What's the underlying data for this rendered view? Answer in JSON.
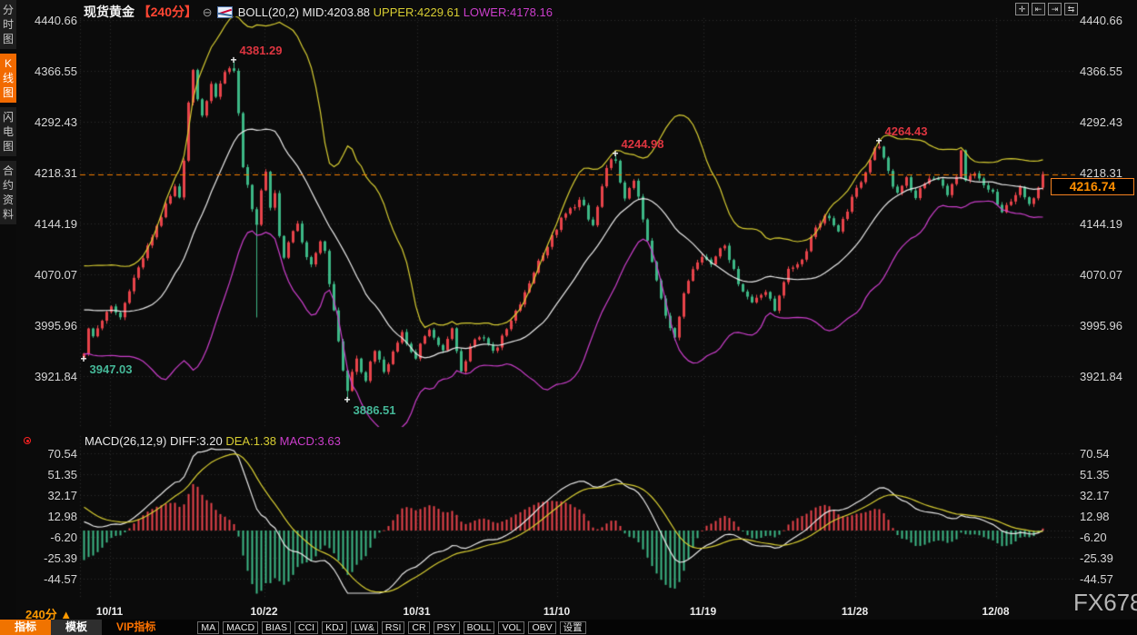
{
  "colors": {
    "up": "#e8434a",
    "down": "#3db886",
    "boll_upper": "#d7cd32",
    "boll_mid": "#eaeaea",
    "boll_lower": "#cb3ecb",
    "last_line": "#f57d00",
    "grid": "#2c2c2c",
    "annotation_high": "#dd3540",
    "annotation_low": "#45b898",
    "accent_orange": "#f07300"
  },
  "sidebar": {
    "items": [
      {
        "label": "分时图",
        "active": false
      },
      {
        "label": "K线图",
        "active": true
      },
      {
        "label": "闪电图",
        "active": false
      },
      {
        "label": "合约资料",
        "active": false
      }
    ]
  },
  "topbar": {
    "symbol": "现货黄金",
    "period": "【240分】",
    "collapse": "⊖",
    "boll_label": "BOLL(20,2)",
    "mid": "MID:4203.88",
    "upper": "UPPER:4229.61",
    "lower": "LOWER:4178.16"
  },
  "window_tools": [
    "✛",
    "⇤",
    "⇥",
    "⇆"
  ],
  "chart_data": {
    "type": "candlestick",
    "title": "现货黄金 240分 K线图 BOLL+MACD",
    "main": {
      "y_ticks": [
        "4440.66",
        "4366.55",
        "4292.43",
        "4218.31",
        "4144.19",
        "4070.07",
        "3995.96",
        "3921.84"
      ],
      "last_close": 4216.74,
      "last_price_label": "4216.74",
      "boll": {
        "period": 20,
        "mult": 2
      },
      "annotations": [
        {
          "text": "4381.29",
          "i": 33,
          "price": 4381.29,
          "kind": "high"
        },
        {
          "text": "3947.03",
          "i": 0,
          "price": 3947.03,
          "kind": "low"
        },
        {
          "text": "3886.51",
          "i": 58,
          "price": 3886.51,
          "kind": "low"
        },
        {
          "text": "4244.98",
          "i": 117,
          "price": 4244.98,
          "kind": "high"
        },
        {
          "text": "4264.43",
          "i": 175,
          "price": 4264.43,
          "kind": "high"
        }
      ],
      "forced_wicks": [
        {
          "i": 38,
          "low": 4008
        },
        {
          "i": 193,
          "high": 4252
        }
      ],
      "key_points": [
        [
          -50,
          3850
        ],
        [
          -30,
          3930
        ],
        [
          -15,
          4010
        ],
        [
          -8,
          4055
        ],
        [
          -5,
          4060
        ],
        [
          -3,
          4020
        ],
        [
          -1,
          3950
        ],
        [
          0,
          3958
        ],
        [
          1,
          3990
        ],
        [
          2,
          3980
        ],
        [
          4,
          4005
        ],
        [
          6,
          4022
        ],
        [
          8,
          4008
        ],
        [
          10,
          4050
        ],
        [
          12,
          4080
        ],
        [
          14,
          4110
        ],
        [
          16,
          4142
        ],
        [
          18,
          4170
        ],
        [
          20,
          4196
        ],
        [
          21,
          4180
        ],
        [
          22,
          4240
        ],
        [
          23,
          4320
        ],
        [
          24,
          4365
        ],
        [
          25,
          4328
        ],
        [
          26,
          4300
        ],
        [
          27,
          4326
        ],
        [
          28,
          4345
        ],
        [
          29,
          4332
        ],
        [
          30,
          4350
        ],
        [
          31,
          4365
        ],
        [
          32,
          4372
        ],
        [
          33,
          4368
        ],
        [
          34,
          4305
        ],
        [
          35,
          4230
        ],
        [
          36,
          4200
        ],
        [
          37,
          4162
        ],
        [
          38,
          4145
        ],
        [
          39,
          4195
        ],
        [
          40,
          4218
        ],
        [
          41,
          4165
        ],
        [
          42,
          4188
        ],
        [
          43,
          4130
        ],
        [
          44,
          4095
        ],
        [
          45,
          4115
        ],
        [
          46,
          4132
        ],
        [
          47,
          4148
        ],
        [
          48,
          4118
        ],
        [
          49,
          4092
        ],
        [
          50,
          4082
        ],
        [
          51,
          4102
        ],
        [
          52,
          4120
        ],
        [
          53,
          4105
        ],
        [
          54,
          4060
        ],
        [
          55,
          4015
        ],
        [
          56,
          3975
        ],
        [
          57,
          3932
        ],
        [
          58,
          3900
        ],
        [
          59,
          3928
        ],
        [
          60,
          3948
        ],
        [
          61,
          3930
        ],
        [
          62,
          3912
        ],
        [
          63,
          3940
        ],
        [
          64,
          3962
        ],
        [
          65,
          3945
        ],
        [
          66,
          3932
        ],
        [
          67,
          3936
        ],
        [
          68,
          3958
        ],
        [
          69,
          3972
        ],
        [
          70,
          3986
        ],
        [
          71,
          3970
        ],
        [
          72,
          3958
        ],
        [
          73,
          3952
        ],
        [
          74,
          3968
        ],
        [
          75,
          3982
        ],
        [
          76,
          3992
        ],
        [
          77,
          3976
        ],
        [
          78,
          3964
        ],
        [
          79,
          3962
        ],
        [
          80,
          3980
        ],
        [
          81,
          3992
        ],
        [
          82,
          3960
        ],
        [
          83,
          3928
        ],
        [
          84,
          3942
        ],
        [
          85,
          3965
        ],
        [
          86,
          3975
        ],
        [
          87,
          3982
        ],
        [
          88,
          3978
        ],
        [
          89,
          3968
        ],
        [
          90,
          3962
        ],
        [
          91,
          3966
        ],
        [
          92,
          3978
        ],
        [
          93,
          3990
        ],
        [
          94,
          4002
        ],
        [
          95,
          4015
        ],
        [
          96,
          4028
        ],
        [
          97,
          4042
        ],
        [
          98,
          4058
        ],
        [
          99,
          4075
        ],
        [
          100,
          4090
        ],
        [
          101,
          4102
        ],
        [
          102,
          4112
        ],
        [
          103,
          4125
        ],
        [
          104,
          4138
        ],
        [
          105,
          4150
        ],
        [
          106,
          4158
        ],
        [
          107,
          4165
        ],
        [
          108,
          4172
        ],
        [
          109,
          4178
        ],
        [
          110,
          4168
        ],
        [
          111,
          4150
        ],
        [
          112,
          4142
        ],
        [
          113,
          4168
        ],
        [
          114,
          4198
        ],
        [
          115,
          4222
        ],
        [
          116,
          4235
        ],
        [
          117,
          4240
        ],
        [
          118,
          4202
        ],
        [
          119,
          4178
        ],
        [
          120,
          4198
        ],
        [
          121,
          4210
        ],
        [
          122,
          4180
        ],
        [
          123,
          4150
        ],
        [
          124,
          4118
        ],
        [
          125,
          4088
        ],
        [
          126,
          4060
        ],
        [
          127,
          4035
        ],
        [
          128,
          4012
        ],
        [
          129,
          3995
        ],
        [
          130,
          3982
        ],
        [
          131,
          4010
        ],
        [
          132,
          4040
        ],
        [
          133,
          4062
        ],
        [
          134,
          4080
        ],
        [
          135,
          4092
        ],
        [
          136,
          4100
        ],
        [
          137,
          4092
        ],
        [
          138,
          4085
        ],
        [
          139,
          4098
        ],
        [
          140,
          4110
        ],
        [
          141,
          4116
        ],
        [
          142,
          4095
        ],
        [
          143,
          4075
        ],
        [
          144,
          4060
        ],
        [
          145,
          4048
        ],
        [
          146,
          4038
        ],
        [
          147,
          4030
        ],
        [
          148,
          4038
        ],
        [
          149,
          4044
        ],
        [
          150,
          4046
        ],
        [
          151,
          4032
        ],
        [
          152,
          4018
        ],
        [
          153,
          4042
        ],
        [
          154,
          4062
        ],
        [
          155,
          4075
        ],
        [
          156,
          4082
        ],
        [
          157,
          4088
        ],
        [
          158,
          4092
        ],
        [
          159,
          4108
        ],
        [
          160,
          4125
        ],
        [
          161,
          4140
        ],
        [
          162,
          4148
        ],
        [
          163,
          4154
        ],
        [
          164,
          4155
        ],
        [
          165,
          4142
        ],
        [
          166,
          4130
        ],
        [
          167,
          4148
        ],
        [
          168,
          4165
        ],
        [
          169,
          4180
        ],
        [
          170,
          4195
        ],
        [
          171,
          4208
        ],
        [
          172,
          4222
        ],
        [
          173,
          4238
        ],
        [
          174,
          4252
        ],
        [
          175,
          4260
        ],
        [
          176,
          4238
        ],
        [
          177,
          4218
        ],
        [
          178,
          4200
        ],
        [
          179,
          4190
        ],
        [
          180,
          4202
        ],
        [
          181,
          4214
        ],
        [
          182,
          4195
        ],
        [
          183,
          4180
        ],
        [
          184,
          4195
        ],
        [
          185,
          4205
        ],
        [
          186,
          4208
        ],
        [
          187,
          4210
        ],
        [
          188,
          4208
        ],
        [
          189,
          4198
        ],
        [
          190,
          4190
        ],
        [
          191,
          4200
        ],
        [
          192,
          4212
        ],
        [
          193,
          4248
        ],
        [
          194,
          4205
        ],
        [
          195,
          4212
        ],
        [
          196,
          4216
        ],
        [
          197,
          4208
        ],
        [
          198,
          4200
        ],
        [
          199,
          4195
        ],
        [
          200,
          4190
        ],
        [
          201,
          4172
        ],
        [
          202,
          4158
        ],
        [
          203,
          4170
        ],
        [
          204,
          4180
        ],
        [
          205,
          4188
        ],
        [
          206,
          4195
        ],
        [
          207,
          4182
        ],
        [
          208,
          4170
        ],
        [
          209,
          4185
        ],
        [
          210,
          4200
        ],
        [
          211,
          4216.74
        ]
      ]
    },
    "macd": {
      "label": "MACD(26,12,9)",
      "diff_label": "DIFF:3.20",
      "dea_label": "DEA:1.38",
      "macd_label": "MACD:3.63",
      "params": [
        26,
        12,
        9
      ],
      "y_ticks": [
        70.54,
        51.35,
        32.17,
        12.98,
        -6.2,
        -25.39,
        -44.57
      ],
      "y_tick_labels": [
        "70.54",
        "51.35",
        "32.17",
        "12.98",
        "-6.20",
        "-25.39",
        "-44.57"
      ]
    },
    "x_labels": [
      {
        "label": "10/11",
        "i": 5.6
      },
      {
        "label": "10/22",
        "i": 39.6
      },
      {
        "label": "10/31",
        "i": 73.2
      },
      {
        "label": "11/10",
        "i": 104
      },
      {
        "label": "11/19",
        "i": 136.2
      },
      {
        "label": "11/28",
        "i": 169.6
      },
      {
        "label": "12/08",
        "i": 200.6
      }
    ]
  },
  "bottom": {
    "period_label": "240分 ▲",
    "tabs": [
      {
        "label": "指标",
        "style": "active"
      },
      {
        "label": "模板",
        "style": "plain"
      },
      {
        "label": "VIP指标",
        "style": "vip"
      }
    ],
    "buttons": [
      "MA",
      "MACD",
      "BIAS",
      "CCI",
      "KDJ",
      "LW&",
      "RSI",
      "CR",
      "PSY",
      "BOLL",
      "VOL",
      "OBV",
      "设置"
    ]
  },
  "watermark": "FX678"
}
